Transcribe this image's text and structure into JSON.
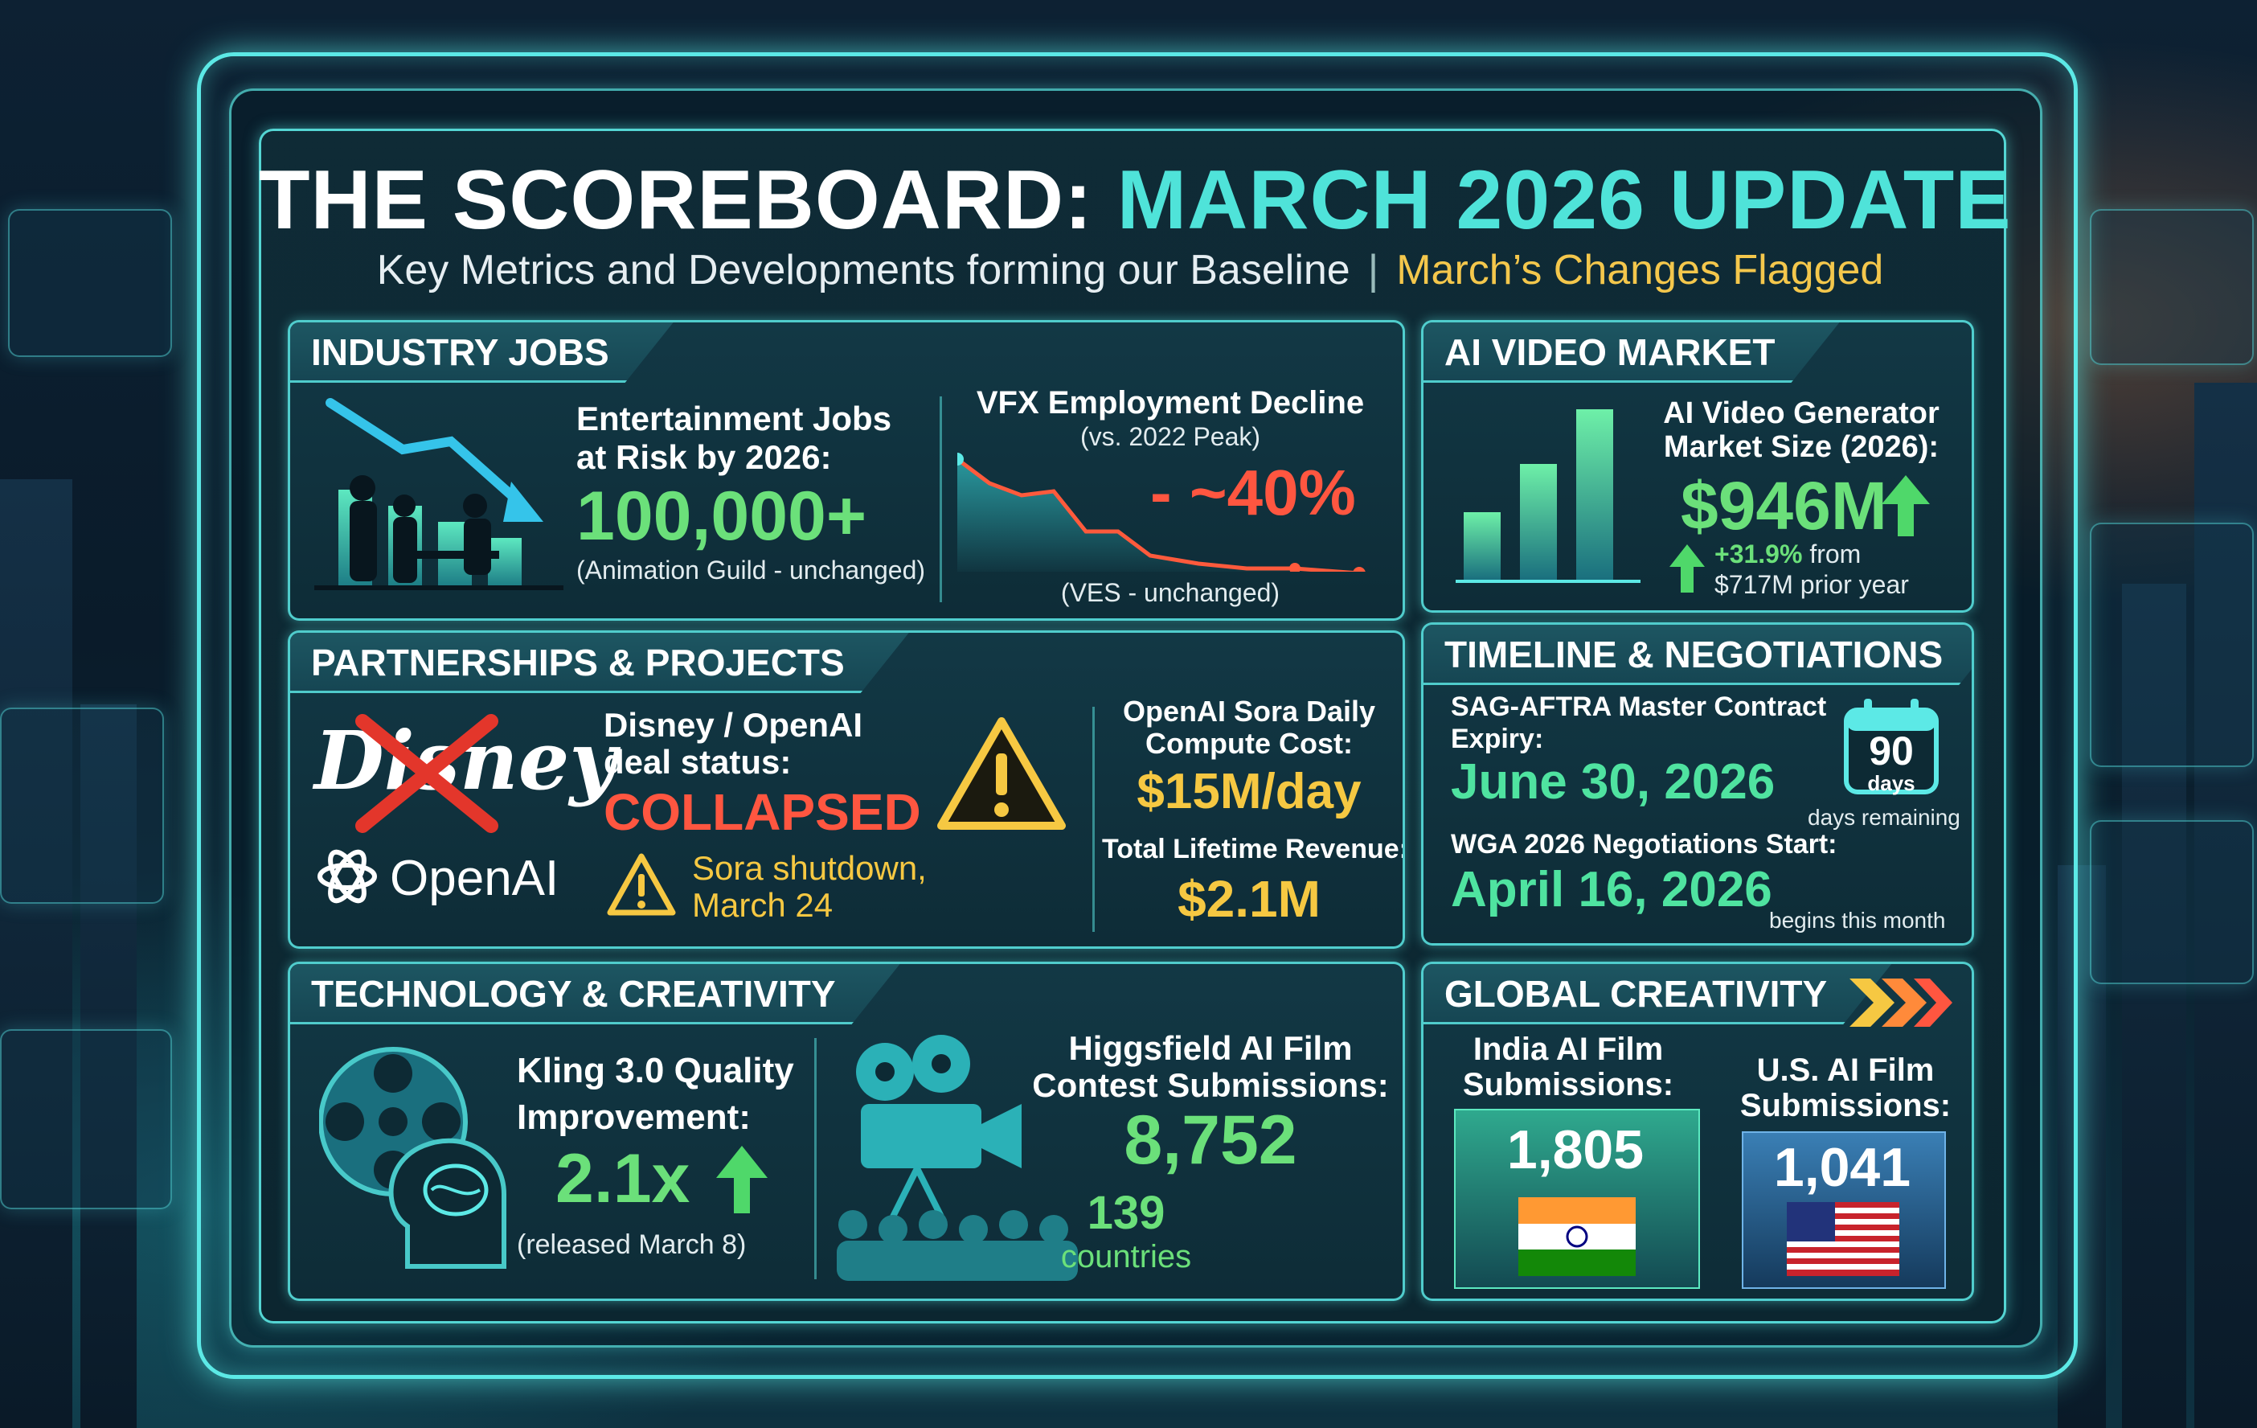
{
  "header": {
    "title_main": "THE SCOREBOARD:",
    "title_highlight": "MARCH 2026 UPDATE",
    "subtitle_main": "Key Metrics and Developments forming our Baseline",
    "subtitle_separator": "|",
    "subtitle_flag": "March’s Changes Flagged"
  },
  "industry_jobs": {
    "tab": "INDUSTRY JOBS",
    "label": [
      "Entertainment Jobs",
      "at Risk by 2026:"
    ],
    "value": "100,000+",
    "note": "(Animation Guild - unchanged)",
    "vfx_title": "VFX Employment Decline",
    "vfx_subtitle": "(vs. 2022 Peak)",
    "vfx_value": "- ~40%",
    "vfx_note": "(VES - unchanged)"
  },
  "ai_video_market": {
    "tab": "AI VIDEO MARKET",
    "label": [
      "AI Video Generator",
      "Market Size (2026):"
    ],
    "value": "$946M",
    "growth": "+31.9%",
    "growth_tail": "from",
    "prior": "$717M prior year"
  },
  "partnerships": {
    "tab": "PARTNERSHIPS & PROJECTS",
    "logo_disney": "Disney",
    "logo_openai": "OpenAI",
    "deal_label": [
      "Disney / OpenAI",
      "deal status:"
    ],
    "deal_value": "COLLAPSED",
    "sora_note": [
      "Sora shutdown,",
      "March 24"
    ],
    "compute_label": [
      "OpenAI Sora Daily",
      "Compute Cost:"
    ],
    "compute_value": "$15M/day",
    "revenue_label": "Total Lifetime Revenue:",
    "revenue_value": "$2.1M"
  },
  "timeline": {
    "tab": "TIMELINE & NEGOTIATIONS",
    "sag_label": [
      "SAG-AFTRA Master Contract",
      "Expiry:"
    ],
    "sag_date": "June 30, 2026",
    "days_number": "90",
    "days_unit": "days",
    "days_note": "days remaining",
    "wga_label": "WGA 2026 Negotiations Start:",
    "wga_date": "April 16, 2026",
    "wga_note": "begins this month"
  },
  "technology": {
    "tab": "TECHNOLOGY & CREATIVITY",
    "kling_label": [
      "Kling 3.0 Quality",
      "Improvement:"
    ],
    "kling_value": "2.1x",
    "kling_note": "(released March 8)",
    "higgs_label": [
      "Higgsfield AI Film",
      "Contest Submissions:"
    ],
    "higgs_value": "8,752",
    "countries_value": "139",
    "countries_label": "countries"
  },
  "global": {
    "tab": "GLOBAL CREATIVITY",
    "india_label": [
      "India AI Film",
      "Submissions:"
    ],
    "india_value": "1,805",
    "us_label": [
      "U.S. AI Film",
      "Submissions:"
    ],
    "us_value": "1,041"
  },
  "colors": {
    "accent": "#5ce9e6",
    "green": "#6be07a",
    "yellow": "#f6c842",
    "red": "#ff5640"
  },
  "icons": [
    "jobs-chart-icon",
    "vfx-decline-chart-icon",
    "market-bar-chart-icon",
    "warning-icon",
    "calendar-icon",
    "film-reel-brain-icon",
    "movie-camera-audience-icon",
    "india-flag-icon",
    "us-flag-icon"
  ]
}
